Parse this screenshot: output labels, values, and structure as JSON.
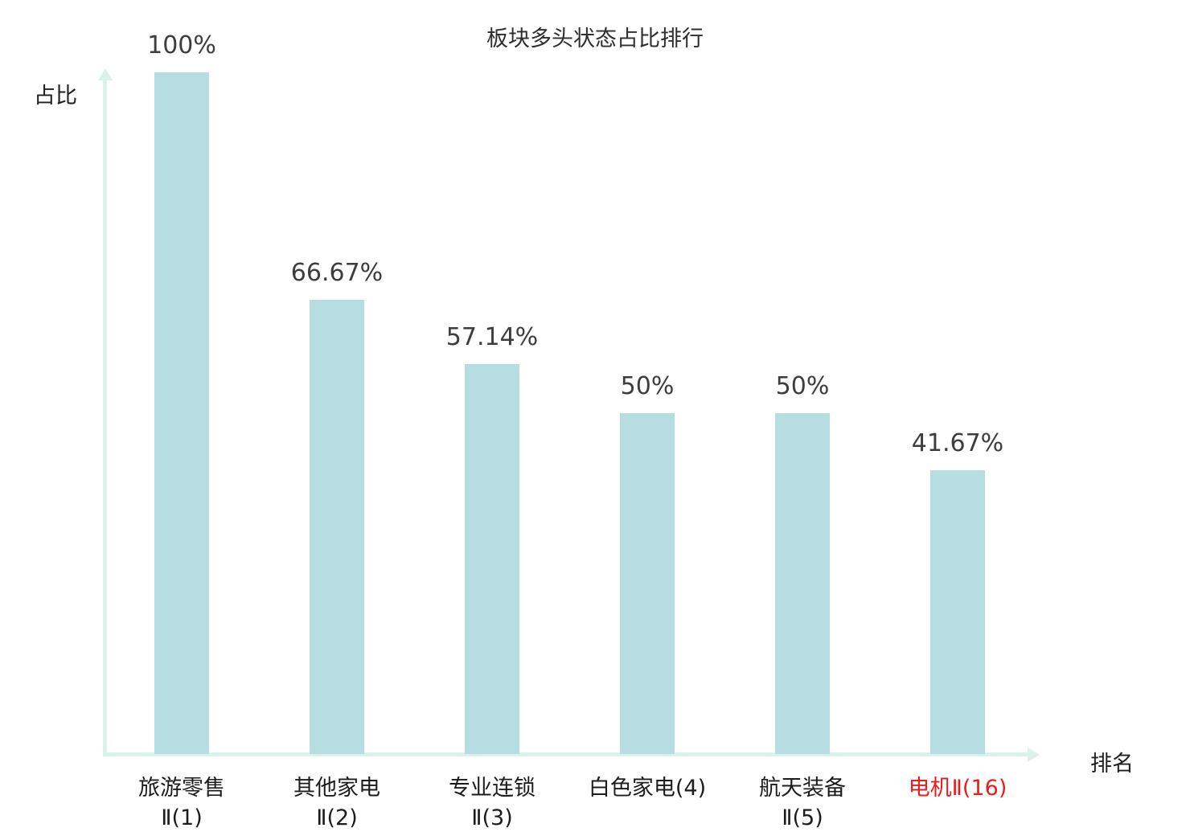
{
  "chart_data": {
    "type": "bar",
    "title": "板块多头状态占比排行",
    "ylabel": "占比",
    "xlabel": "排名",
    "ylim": [
      0,
      100
    ],
    "grid": false,
    "legend": false,
    "categories": [
      "旅游零售Ⅱ(1)",
      "其他家电Ⅱ(2)",
      "专业连锁Ⅱ(3)",
      "白色家电(4)",
      "航天装备Ⅱ(5)",
      "电机Ⅱ(16)"
    ],
    "category_lines": [
      [
        "旅游零售",
        "Ⅱ(1)"
      ],
      [
        "其他家电",
        "Ⅱ(2)"
      ],
      [
        "专业连锁",
        "Ⅱ(3)"
      ],
      [
        "白色家电(4)"
      ],
      [
        "航天装备",
        "Ⅱ(5)"
      ],
      [
        "电机Ⅱ(16)"
      ]
    ],
    "values": [
      100,
      66.67,
      57.14,
      50,
      50,
      41.67
    ],
    "value_labels": [
      "100%",
      "66.67%",
      "57.14%",
      "50%",
      "50%",
      "41.67%"
    ],
    "highlight_index": 5,
    "colors": {
      "bar_fill": "#b6dde2",
      "axis": "#d9f2ec",
      "value_text": "#3d3d3d",
      "category_text": "#1c1c1c",
      "highlight_text": "#f01a1a"
    }
  }
}
